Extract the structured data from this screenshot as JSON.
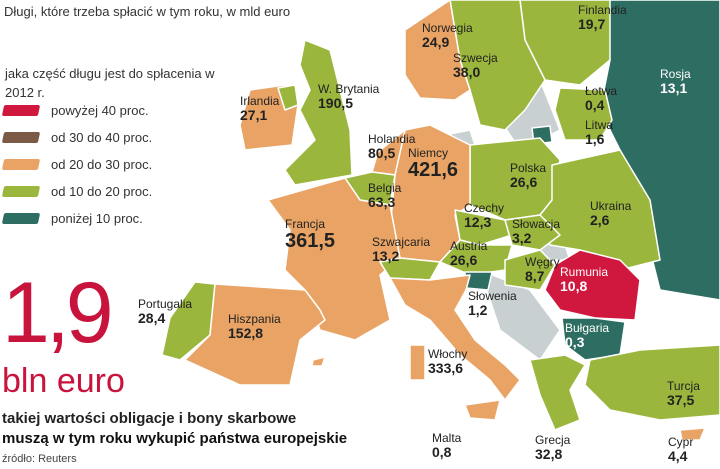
{
  "title": "Długi, które trzeba spłacić w tym roku, w mld euro",
  "legend": {
    "title": "jaka część długu jest do spłacenia w 2012 r.",
    "items": [
      {
        "label": "powyżej 40 proc.",
        "color": "#d0173d"
      },
      {
        "label": "od 30 do 40 proc.",
        "color": "#7b5a46"
      },
      {
        "label": "od 20 do 30 proc.",
        "color": "#e9a465"
      },
      {
        "label": "od 10 do 20 proc.",
        "color": "#9bb63c"
      },
      {
        "label": "poniżej 10 proc.",
        "color": "#2e6e62"
      }
    ]
  },
  "headline": {
    "value": "1,9",
    "unit": "bln euro",
    "line1": "takiej wartości obligacje i bony skarbowe",
    "line2": "muszą w tym roku wykupić państwa europejskie"
  },
  "source": "źródło: Reuters",
  "countries": [
    {
      "name": "Norwegia",
      "value": "24,9",
      "category": "od 20 do 30 proc."
    },
    {
      "name": "Finlandia",
      "value": "19,7",
      "category": "od 10 do 20 proc."
    },
    {
      "name": "Szwecja",
      "value": "38,0",
      "category": "od 10 do 20 proc."
    },
    {
      "name": "Rosja",
      "value": "13,1",
      "category": "poniżej 10 proc."
    },
    {
      "name": "Łotwa",
      "value": "0,4",
      "category": "od 10 do 20 proc."
    },
    {
      "name": "Litwa",
      "value": "1,6",
      "category": "od 10 do 20 proc."
    },
    {
      "name": "W. Brytania",
      "value": "190,5",
      "category": "od 10 do 20 proc."
    },
    {
      "name": "Irlandia",
      "value": "27,1",
      "category": "od 20 do 30 proc."
    },
    {
      "name": "Holandia",
      "value": "80,5",
      "category": "od 20 do 30 proc."
    },
    {
      "name": "Niemcy",
      "value": "421,6",
      "category": "od 20 do 30 proc."
    },
    {
      "name": "Polska",
      "value": "26,6",
      "category": "od 10 do 20 proc."
    },
    {
      "name": "Belgia",
      "value": "63,3",
      "category": "od 10 do 20 proc."
    },
    {
      "name": "Czechy",
      "value": "12,3",
      "category": "od 10 do 20 proc."
    },
    {
      "name": "Ukraina",
      "value": "2,6",
      "category": "od 10 do 20 proc."
    },
    {
      "name": "Francja",
      "value": "361,5",
      "category": "od 20 do 30 proc."
    },
    {
      "name": "Słowacja",
      "value": "3,2",
      "category": "od 10 do 20 proc."
    },
    {
      "name": "Szwajcaria",
      "value": "13,2",
      "category": "od 10 do 20 proc."
    },
    {
      "name": "Austria",
      "value": "26,6",
      "category": "od 10 do 20 proc."
    },
    {
      "name": "Węgry",
      "value": "8,7",
      "category": "od 10 do 20 proc."
    },
    {
      "name": "Rumunia",
      "value": "10,8",
      "category": "powyżej 40 proc."
    },
    {
      "name": "Słowenia",
      "value": "1,2",
      "category": "poniżej 10 proc."
    },
    {
      "name": "Bułgaria",
      "value": "0,3",
      "category": "poniżej 10 proc."
    },
    {
      "name": "Portugalia",
      "value": "28,4",
      "category": "od 10 do 20 proc."
    },
    {
      "name": "Hiszpania",
      "value": "152,8",
      "category": "od 20 do 30 proc."
    },
    {
      "name": "Włochy",
      "value": "333,6",
      "category": "od 20 do 30 proc."
    },
    {
      "name": "Turcja",
      "value": "37,5",
      "category": "od 10 do 20 proc."
    },
    {
      "name": "Malta",
      "value": "0,8",
      "category": "od 20 do 30 proc."
    },
    {
      "name": "Grecja",
      "value": "32,8",
      "category": "od 10 do 20 proc."
    },
    {
      "name": "Cypr",
      "value": "4,4",
      "category": "od 20 do 30 proc."
    }
  ]
}
